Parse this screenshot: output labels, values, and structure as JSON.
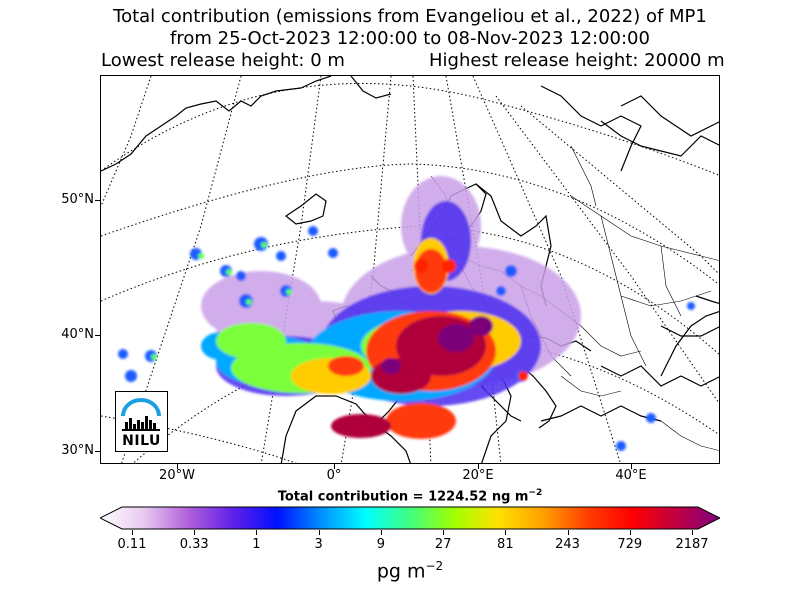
{
  "title": {
    "line1": "Total contribution (emissions from Evangeliou et al., 2022) of MP1",
    "line2": "from 25-Oct-2023 12:00:00 to 08-Nov-2023 12:00:00",
    "lowest_release_height": "Lowest release height: 0 m",
    "highest_release_height": "Highest release height: 20000 m"
  },
  "map": {
    "lat_labels": [
      "50°N",
      "40°N",
      "30°N"
    ],
    "lon_labels": [
      "20°W",
      "0°",
      "20°E",
      "40°E"
    ],
    "logo_text": "NILU"
  },
  "total_contribution": {
    "prefix": "Total contribution = 1224.52 ng m",
    "exponent": "−2"
  },
  "colorbar": {
    "tick_labels": [
      "0.11",
      "0.33",
      "1",
      "3",
      "9",
      "27",
      "81",
      "243",
      "729",
      "2187"
    ],
    "colors": [
      "#ffffff",
      "#e8c8f0",
      "#b060d8",
      "#6020e8",
      "#0010ff",
      "#0090ff",
      "#00ffff",
      "#40ff80",
      "#a0ff00",
      "#ffe000",
      "#ffa000",
      "#ff4000",
      "#ff0000",
      "#c00040",
      "#800080"
    ],
    "unit": "pg m",
    "unit_exponent": "−2"
  }
}
